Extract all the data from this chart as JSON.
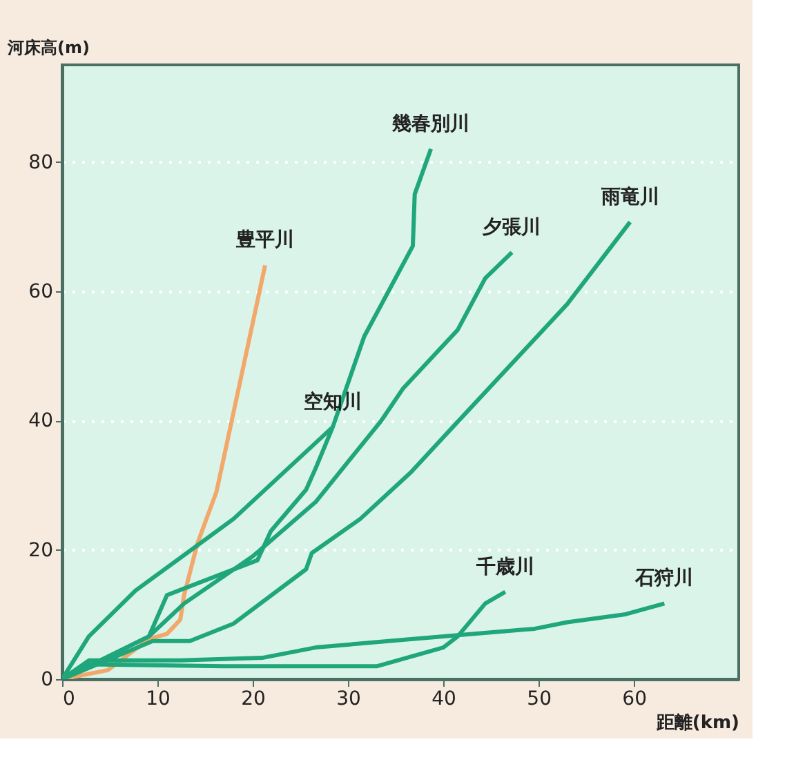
{
  "chart_data": {
    "type": "line",
    "xlabel": "距離(km)",
    "ylabel": "河床高(m)",
    "xlim": [
      0,
      71
    ],
    "xticks": [
      0,
      10,
      20,
      30,
      40,
      50,
      60
    ],
    "ylim": [
      0,
      95
    ],
    "yticks": [
      0,
      20,
      40,
      60,
      80
    ],
    "grid": "y",
    "marker": "none",
    "line_style": "solid",
    "series": [
      {
        "name": "豊平川",
        "color": "#f2a86a",
        "x": [
          0,
          4.8,
          9.1,
          11,
          12.4,
          12.8,
          14.2,
          16.2,
          17.8,
          21.3
        ],
        "values": [
          0,
          1.4,
          6.2,
          7,
          9.2,
          13,
          21,
          29,
          40,
          64
        ]
      },
      {
        "name": "幾春別川",
        "color": "#1fa67a",
        "x": [
          0,
          9.1,
          11,
          20.5,
          21.9,
          25.6,
          26.6,
          28.4,
          31.7,
          36.8,
          37,
          38.7
        ],
        "values": [
          0,
          6.6,
          13,
          18.4,
          22.9,
          29.3,
          32.6,
          39,
          53,
          67,
          75,
          82
        ]
      },
      {
        "name": "空知川",
        "color": "#1fa67a",
        "x": [
          0,
          2.8,
          7.7,
          18,
          28.4
        ],
        "values": [
          0,
          6.6,
          13.7,
          24.8,
          39
        ]
      },
      {
        "name": "夕張川",
        "color": "#1fa67a",
        "x": [
          0,
          9.1,
          12.8,
          20,
          26.6,
          33.5,
          35.8,
          41.5,
          44.4,
          47.2
        ],
        "values": [
          0,
          6.6,
          11.7,
          19,
          27.4,
          40,
          45,
          54,
          62,
          66
        ]
      },
      {
        "name": "雨竜川",
        "color": "#1fa67a",
        "x": [
          0,
          9.5,
          13.4,
          18,
          25.6,
          26.2,
          31.3,
          36.6,
          41,
          53,
          59.6
        ],
        "values": [
          0,
          5.9,
          5.9,
          8.6,
          17,
          19.5,
          24.8,
          32,
          39,
          58,
          70.7
        ]
      },
      {
        "name": "千歳川",
        "color": "#1fa67a",
        "x": [
          0,
          2.8,
          17,
          33,
          40,
          41.5,
          44.4,
          46.5
        ],
        "values": [
          0,
          2.3,
          2,
          2,
          4.9,
          6.6,
          11.7,
          13.5
        ]
      },
      {
        "name": "石狩川",
        "color": "#1fa67a",
        "x": [
          0,
          2.8,
          12.4,
          21,
          26.6,
          36.6,
          49.6,
          53,
          59,
          63.2
        ],
        "values": [
          0,
          2.9,
          2.9,
          3.3,
          4.9,
          6.2,
          7.8,
          8.8,
          10,
          11.7
        ]
      }
    ]
  }
}
